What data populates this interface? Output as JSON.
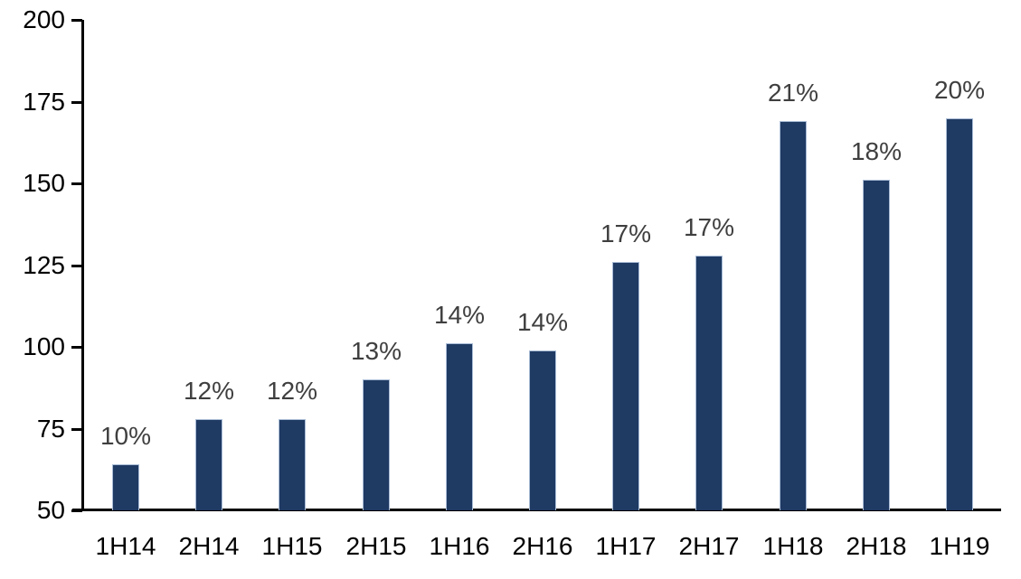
{
  "chart_data": {
    "type": "bar",
    "title": "",
    "xlabel": "",
    "ylabel": "",
    "categories": [
      "1H14",
      "2H14",
      "1H15",
      "2H15",
      "1H16",
      "2H16",
      "1H17",
      "2H17",
      "1H18",
      "2H18",
      "1H19"
    ],
    "values": [
      64,
      78,
      78,
      90,
      101,
      99,
      126,
      128,
      169,
      151,
      170
    ],
    "bar_labels": [
      "10%",
      "12%",
      "12%",
      "13%",
      "14%",
      "14%",
      "17%",
      "17%",
      "21%",
      "18%",
      "20%"
    ],
    "ylim": [
      50,
      200
    ],
    "yticks": [
      50,
      75,
      100,
      125,
      150,
      175,
      200
    ],
    "grid": false,
    "legend_position": "none",
    "colors": {
      "bar_fill": "#1F3A63",
      "bar_border": "#A9BCD6",
      "data_label": "#3F3F3F",
      "axis_line": "#000000",
      "tick_label": "#000000",
      "background": "#FFFFFF"
    }
  }
}
